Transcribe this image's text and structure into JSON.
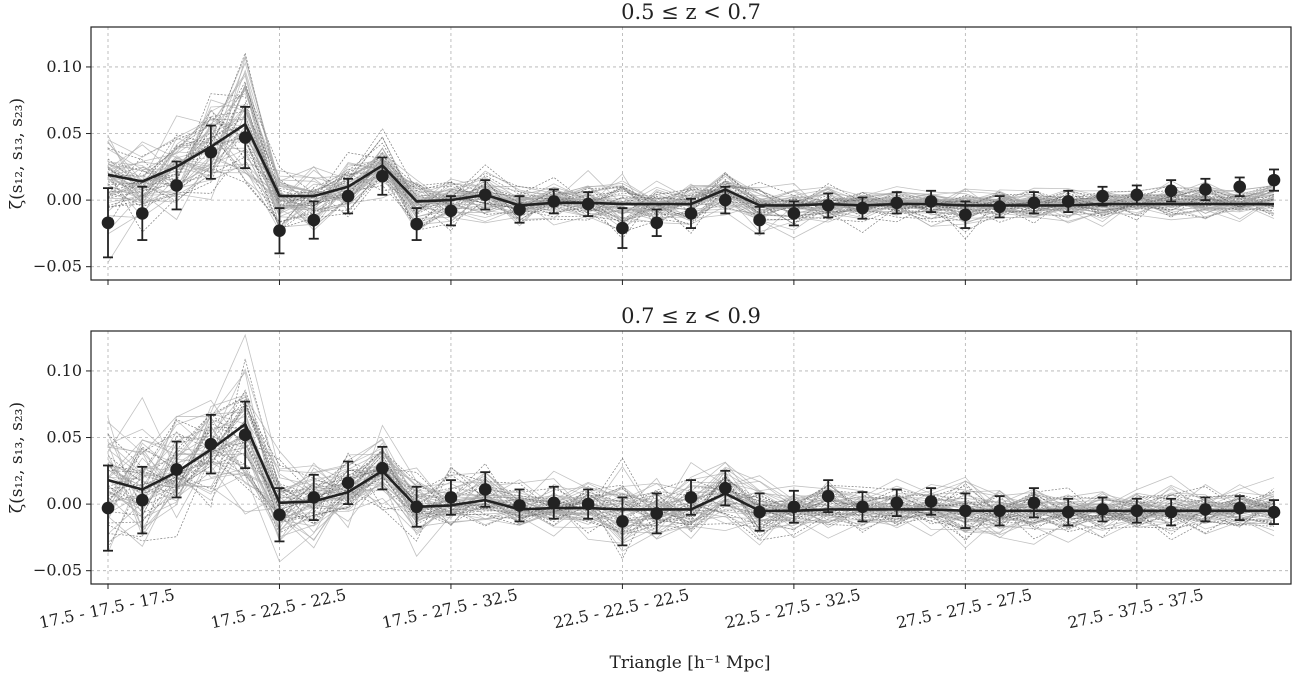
{
  "chart_data": {
    "type": "line",
    "xlabel": "Triangle [h⁻¹ Mpc]",
    "xtick_labels": [
      "17.5 - 17.5 - 17.5",
      "17.5 - 22.5 - 22.5",
      "17.5 - 27.5 - 32.5",
      "22.5 - 22.5 - 22.5",
      "22.5 - 27.5 - 32.5",
      "27.5 - 27.5 - 27.5",
      "27.5 - 37.5 - 37.5"
    ],
    "xtick_positions": [
      0,
      5,
      10,
      15,
      20,
      25,
      30
    ],
    "grid": true,
    "colors": {
      "data": "#222222",
      "model": "#222222",
      "mocks": "#9a9a9a"
    },
    "panels": [
      {
        "title": "0.5 ≤ z < 0.7",
        "ylabel": "ζ(s₁₂, s₁₃, s₂₃)",
        "ylim": [
          -0.06,
          0.13
        ],
        "yticks": [
          -0.05,
          0.0,
          0.05,
          0.1
        ],
        "ytick_labels": [
          "−0.05",
          "0.00",
          "0.05",
          "0.10"
        ],
        "x": [
          0,
          1,
          2,
          3,
          4,
          5,
          6,
          7,
          8,
          9,
          10,
          11,
          12,
          13,
          14,
          15,
          16,
          17,
          18,
          19,
          20,
          21,
          22,
          23,
          24,
          25,
          26,
          27,
          28,
          29,
          30,
          31,
          32,
          33,
          34
        ],
        "data_points": [
          -0.017,
          -0.01,
          0.011,
          0.036,
          0.047,
          -0.023,
          -0.015,
          0.003,
          0.018,
          -0.018,
          -0.008,
          0.004,
          -0.007,
          -0.001,
          -0.003,
          -0.021,
          -0.017,
          -0.01,
          0.0,
          -0.015,
          -0.01,
          -0.004,
          -0.006,
          -0.002,
          -0.001,
          -0.011,
          -0.005,
          -0.002,
          -0.001,
          0.003,
          0.004,
          0.007,
          0.008,
          0.01,
          0.015
        ],
        "error_bars": [
          0.026,
          0.02,
          0.018,
          0.02,
          0.023,
          0.017,
          0.014,
          0.013,
          0.014,
          0.012,
          0.011,
          0.011,
          0.01,
          0.009,
          0.009,
          0.015,
          0.01,
          0.011,
          0.01,
          0.01,
          0.009,
          0.009,
          0.008,
          0.008,
          0.008,
          0.01,
          0.008,
          0.008,
          0.008,
          0.007,
          0.007,
          0.008,
          0.008,
          0.007,
          0.008
        ],
        "model": [
          0.019,
          0.014,
          0.025,
          0.04,
          0.057,
          0.003,
          0.003,
          0.01,
          0.026,
          -0.001,
          0.0,
          0.004,
          -0.004,
          -0.002,
          -0.002,
          -0.003,
          -0.003,
          -0.003,
          0.008,
          -0.004,
          -0.004,
          -0.003,
          -0.004,
          -0.003,
          -0.003,
          -0.004,
          -0.004,
          -0.004,
          -0.004,
          -0.003,
          -0.003,
          -0.003,
          -0.003,
          -0.003,
          -0.003
        ],
        "mock_spread": [
          0.02,
          0.02,
          0.02,
          0.025,
          0.03,
          0.017,
          0.014,
          0.013,
          0.014,
          0.012,
          0.011,
          0.011,
          0.01,
          0.009,
          0.009,
          0.015,
          0.01,
          0.011,
          0.01,
          0.01,
          0.009,
          0.009,
          0.008,
          0.008,
          0.008,
          0.01,
          0.008,
          0.008,
          0.008,
          0.007,
          0.007,
          0.008,
          0.008,
          0.007,
          0.008
        ]
      },
      {
        "title": "0.7 ≤ z < 0.9",
        "ylabel": "ζ(s₁₂, s₁₃, s₂₃)",
        "ylim": [
          -0.06,
          0.13
        ],
        "yticks": [
          -0.05,
          0.0,
          0.05,
          0.1
        ],
        "ytick_labels": [
          "−0.05",
          "0.00",
          "0.05",
          "0.10"
        ],
        "x": [
          0,
          1,
          2,
          3,
          4,
          5,
          6,
          7,
          8,
          9,
          10,
          11,
          12,
          13,
          14,
          15,
          16,
          17,
          18,
          19,
          20,
          21,
          22,
          23,
          24,
          25,
          26,
          27,
          28,
          29,
          30,
          31,
          32,
          33,
          34
        ],
        "data_points": [
          -0.003,
          0.003,
          0.026,
          0.045,
          0.052,
          -0.008,
          0.005,
          0.016,
          0.027,
          -0.002,
          0.005,
          0.011,
          -0.001,
          0.001,
          0.0,
          -0.013,
          -0.007,
          0.005,
          0.012,
          -0.006,
          -0.002,
          0.006,
          -0.002,
          0.001,
          0.002,
          -0.005,
          -0.005,
          0.001,
          -0.006,
          -0.004,
          -0.005,
          -0.006,
          -0.004,
          -0.003,
          -0.006
        ],
        "error_bars": [
          0.032,
          0.025,
          0.021,
          0.022,
          0.025,
          0.02,
          0.017,
          0.016,
          0.016,
          0.015,
          0.013,
          0.013,
          0.012,
          0.012,
          0.011,
          0.018,
          0.015,
          0.013,
          0.013,
          0.014,
          0.012,
          0.012,
          0.011,
          0.01,
          0.01,
          0.013,
          0.011,
          0.011,
          0.01,
          0.009,
          0.009,
          0.01,
          0.009,
          0.009,
          0.009
        ],
        "model": [
          0.018,
          0.011,
          0.024,
          0.041,
          0.06,
          0.001,
          0.002,
          0.009,
          0.025,
          -0.002,
          -0.001,
          0.003,
          -0.004,
          -0.003,
          -0.003,
          -0.004,
          -0.004,
          -0.004,
          0.008,
          -0.005,
          -0.005,
          -0.004,
          -0.004,
          -0.004,
          -0.004,
          -0.005,
          -0.005,
          -0.005,
          -0.005,
          -0.005,
          -0.005,
          -0.005,
          -0.005,
          -0.005,
          -0.005
        ],
        "mock_spread": [
          0.03,
          0.028,
          0.025,
          0.028,
          0.035,
          0.02,
          0.017,
          0.016,
          0.016,
          0.015,
          0.013,
          0.013,
          0.012,
          0.012,
          0.011,
          0.018,
          0.015,
          0.013,
          0.013,
          0.014,
          0.012,
          0.012,
          0.011,
          0.01,
          0.01,
          0.013,
          0.011,
          0.011,
          0.01,
          0.009,
          0.009,
          0.01,
          0.009,
          0.009,
          0.009
        ]
      }
    ]
  }
}
